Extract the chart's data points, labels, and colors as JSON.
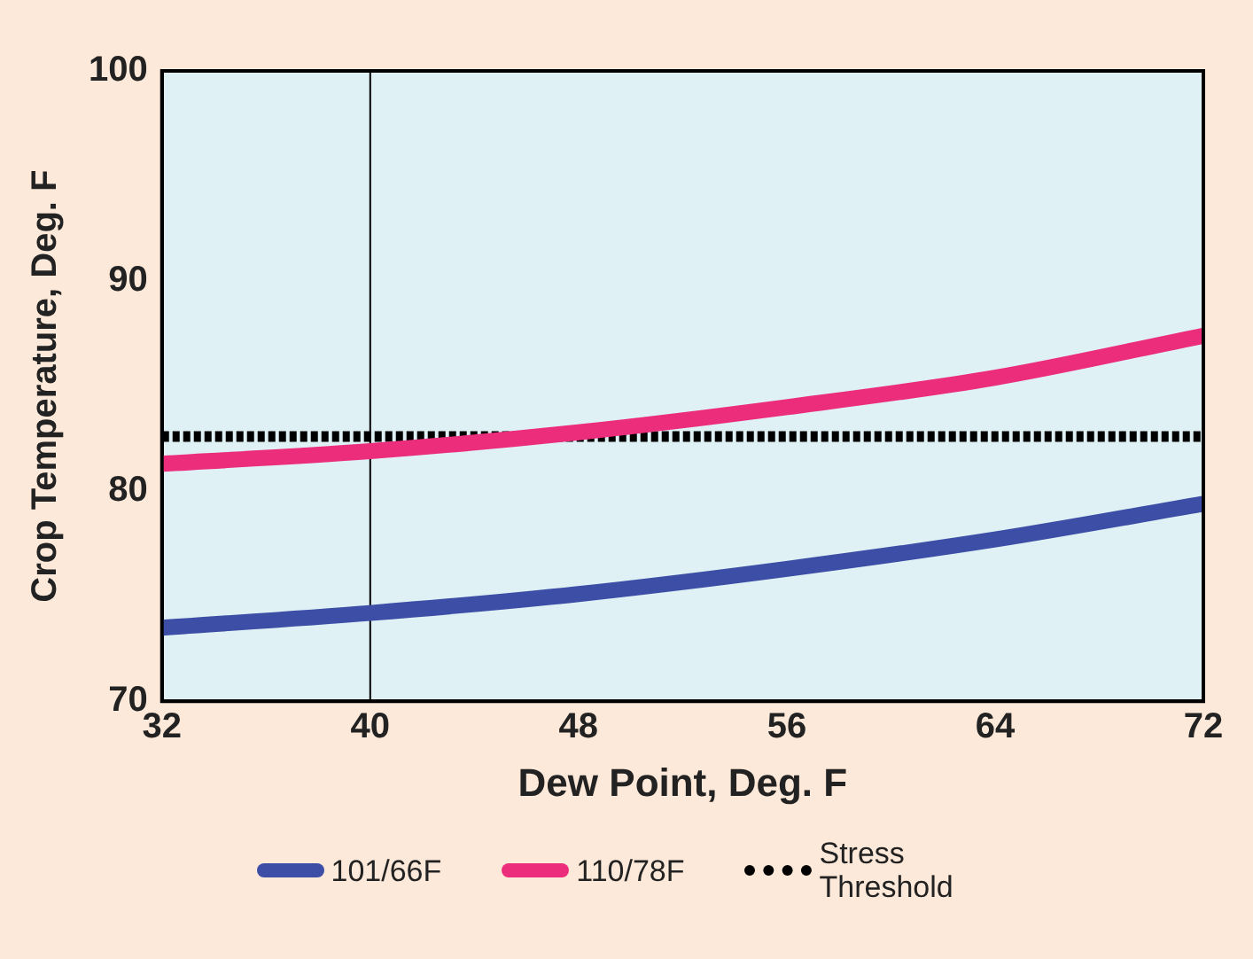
{
  "chart_data": {
    "type": "line",
    "xlabel": "Dew Point, Deg. F",
    "ylabel": "Crop Temperature, Deg. F",
    "x": [
      32,
      40,
      48,
      56,
      64,
      72
    ],
    "series": [
      {
        "name": "101/66F",
        "color": "#3c4ea6",
        "values": [
          73.5,
          74.2,
          75.1,
          76.3,
          77.7,
          79.4
        ]
      },
      {
        "name": "110/78F",
        "color": "#ec2d7c",
        "values": [
          81.3,
          81.9,
          82.8,
          84.0,
          85.4,
          87.4
        ]
      }
    ],
    "ref_lines": [
      {
        "axis": "y",
        "value": 82.6,
        "label": "Stress Threshold",
        "color": "#000000",
        "line_style": "dotted"
      },
      {
        "axis": "x",
        "value": 40,
        "color": "#000000"
      }
    ],
    "xlim": [
      32,
      72
    ],
    "xticks": [
      32,
      40,
      48,
      56,
      64,
      72
    ],
    "ylim": [
      70,
      100
    ],
    "yticks": [
      70,
      80,
      90,
      100
    ],
    "grid": false,
    "legend": "bottom",
    "marker": "none",
    "line_style": "solid"
  }
}
